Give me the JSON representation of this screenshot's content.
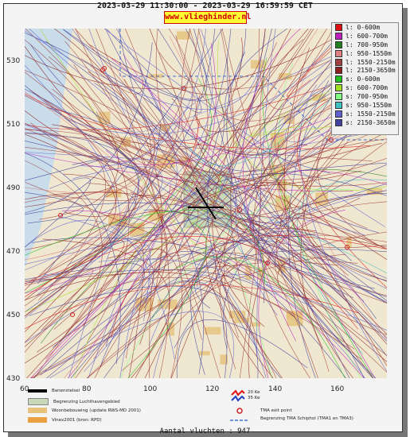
{
  "header": {
    "title": "2023-03-29 11:30:00 - 2023-03-29 16:59:59 CET",
    "site": "www.vlieghinder.nl"
  },
  "axes": {
    "y_labels": [
      "530",
      "510",
      "490",
      "470",
      "450",
      "430"
    ],
    "x_labels": [
      "60",
      "80",
      "100",
      "120",
      "140",
      "160"
    ]
  },
  "legend": {
    "items": [
      {
        "label": "l: 0-600m",
        "color": "#e01010"
      },
      {
        "label": "l: 600-700m",
        "color": "#c020c0"
      },
      {
        "label": "l: 700-950m",
        "color": "#208020"
      },
      {
        "label": "l: 950-1550m",
        "color": "#e08080"
      },
      {
        "label": "l: 1550-2150m",
        "color": "#a04040"
      },
      {
        "label": "l: 2150-3650m",
        "color": "#902020"
      },
      {
        "label": "s: 0-600m",
        "color": "#20c020"
      },
      {
        "label": "s: 600-700m",
        "color": "#a0e020"
      },
      {
        "label": "s: 700-950m",
        "color": "#80ff80"
      },
      {
        "label": "s: 950-1550m",
        "color": "#40c0c0"
      },
      {
        "label": "s: 1550-2150m",
        "color": "#6060d0"
      },
      {
        "label": "s: 2150-3650m",
        "color": "#4040a0"
      }
    ]
  },
  "bottom_legend": {
    "baanstelsel": "Banenstelsel",
    "luchthaven": "Begrenzing Luchthavengebied",
    "woonbebouwing": "Woonbebouwing (update RWS-MD 2001)",
    "vinex": "Vinex2001 (bron: RPD)",
    "ke20": "20 Ke",
    "ke35": "35 Ke",
    "tma_exit": "TMA exit point",
    "tma_border": "Begrenzing TMA Schiphol (TMA1 en TMA3)"
  },
  "footer": {
    "count": "Aantal vluchten : 947"
  }
}
